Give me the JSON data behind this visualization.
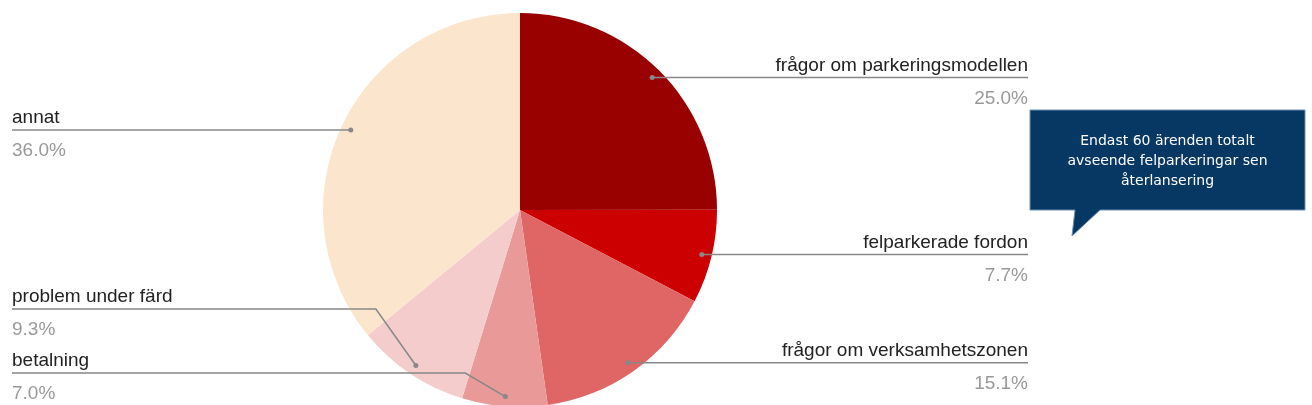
{
  "chart_data": {
    "type": "pie",
    "categories": [
      "frågor om parkeringsmodellen",
      "felparkerade fordon",
      "frågor om verksamhetszonen",
      "betalning",
      "problem under färd",
      "annat"
    ],
    "values": [
      25.0,
      7.7,
      15.1,
      7.0,
      9.3,
      36.0
    ],
    "value_labels": [
      "25.0%",
      "7.7%",
      "15.1%",
      "7.0%",
      "9.3%",
      "36.0%"
    ],
    "colors": [
      "#990000",
      "#cc0000",
      "#e06666",
      "#ea9999",
      "#f4cccc",
      "#fce5cd"
    ],
    "annotations": [
      "Endast 60 ärenden totalt avseende felparkeringar sen återlansering"
    ]
  }
}
